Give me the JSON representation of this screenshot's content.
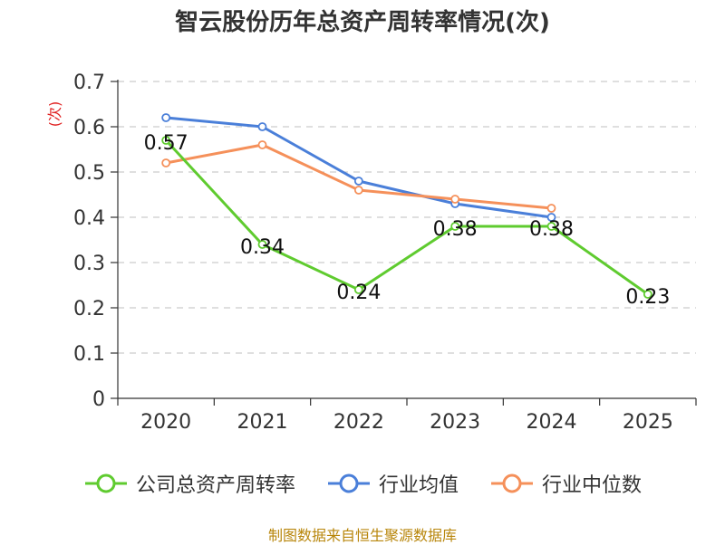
{
  "title": "智云股份历年总资产周转率情况(次)",
  "source": "制图数据来自恒生聚源数据库",
  "chart_data": {
    "type": "line",
    "categories": [
      "2020",
      "2021",
      "2022",
      "2023",
      "2024",
      "2025"
    ],
    "ylabel": "(次)",
    "ylim": [
      0,
      0.7
    ],
    "yticks": [
      0,
      0.1,
      0.2,
      0.3,
      0.4,
      0.5,
      0.6,
      0.7
    ],
    "grid": true,
    "legend_position": "bottom",
    "series": [
      {
        "name": "公司总资产周转率",
        "color": "#5fcb2f",
        "values": [
          0.57,
          0.34,
          0.24,
          0.38,
          0.38,
          0.23
        ],
        "labels": [
          "0.57",
          "0.34",
          "0.24",
          "0.38",
          "0.38",
          "0.23"
        ]
      },
      {
        "name": "行业均值",
        "color": "#4a7fd9",
        "values": [
          0.62,
          0.6,
          0.48,
          0.43,
          0.4,
          null
        ]
      },
      {
        "name": "行业中位数",
        "color": "#f5905a",
        "values": [
          0.52,
          0.56,
          0.46,
          0.44,
          0.42,
          null
        ]
      }
    ]
  }
}
